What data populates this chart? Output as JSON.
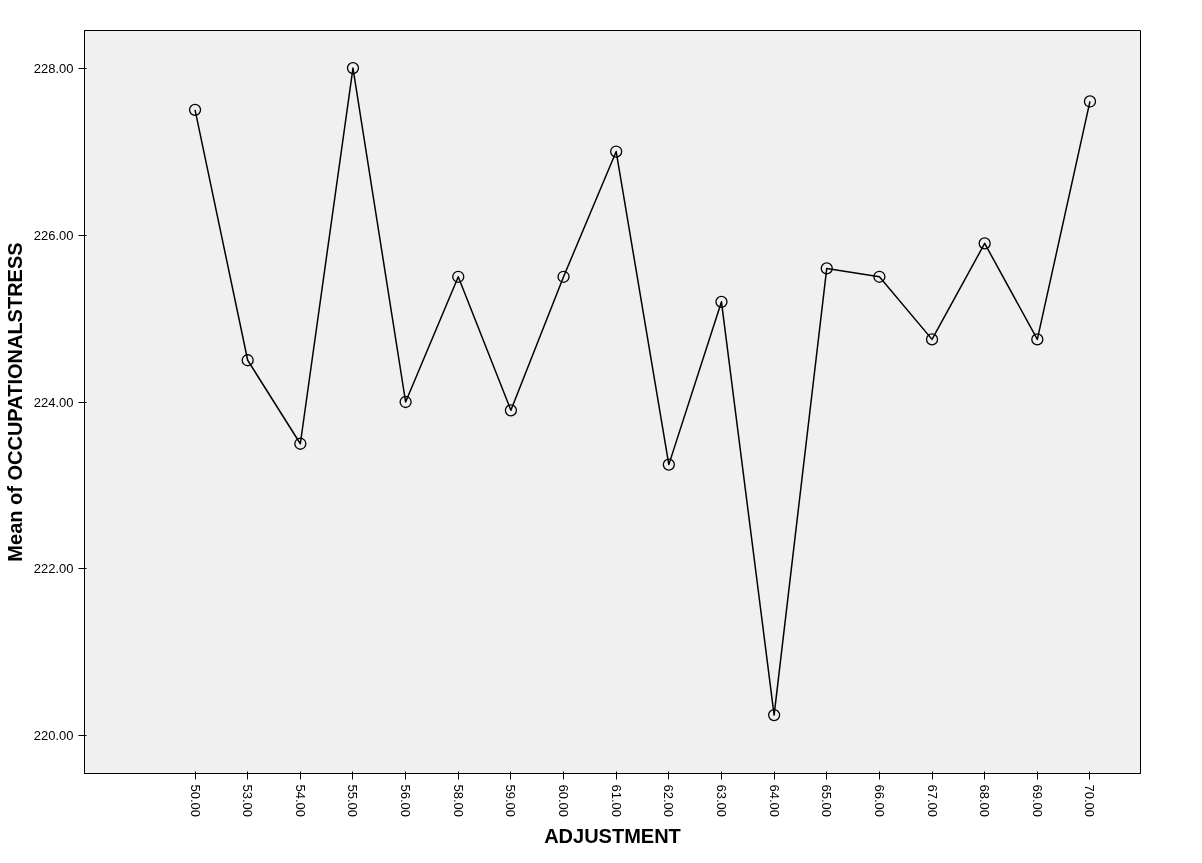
{
  "chart_data": {
    "type": "line",
    "xlabel": "ADJUSTMENT",
    "ylabel": "Mean of OCCUPATIONALSTRESS",
    "categories": [
      "50.00",
      "53.00",
      "54.00",
      "55.00",
      "56.00",
      "58.00",
      "59.00",
      "60.00",
      "61.00",
      "62.00",
      "63.00",
      "64.00",
      "65.00",
      "66.00",
      "67.00",
      "68.00",
      "69.00",
      "70.00"
    ],
    "series": [
      {
        "color": "#000000",
        "values": [
          227.5,
          224.5,
          223.5,
          228.0,
          224.0,
          225.5,
          223.9,
          225.5,
          227.0,
          223.25,
          225.2,
          220.25,
          225.6,
          225.5,
          224.75,
          225.9,
          224.75,
          227.6
        ]
      }
    ],
    "ylim": [
      219.55,
      228.45
    ],
    "yticks": [
      {
        "value": 220,
        "label": "220.00"
      },
      {
        "value": 222,
        "label": "222.00"
      },
      {
        "value": 224,
        "label": "224.00"
      },
      {
        "value": 226,
        "label": "226.00"
      },
      {
        "value": 228,
        "label": "228.00"
      }
    ],
    "marker": "circle",
    "line_style": "solid",
    "grid": false
  }
}
